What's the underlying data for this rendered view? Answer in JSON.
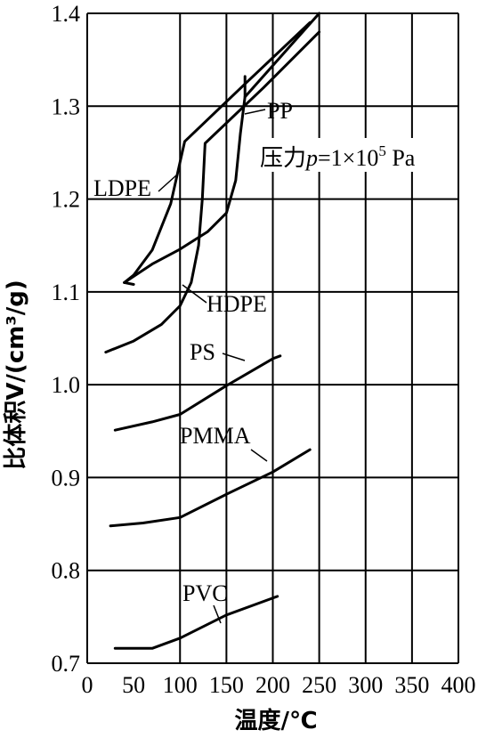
{
  "chart_data": {
    "type": "line",
    "xlabel": "温度/℃",
    "ylabel": "比体积V/(cm³/g)",
    "xlim": [
      0,
      400
    ],
    "ylim": [
      0.7,
      1.4
    ],
    "x_ticks": [
      "0",
      "50",
      "100",
      "150",
      "200",
      "250",
      "300",
      "350",
      "400"
    ],
    "y_ticks": [
      "0.7",
      "0.8",
      "0.9",
      "1.0",
      "1.1",
      "1.2",
      "1.3",
      "1.4"
    ],
    "grid": true,
    "annotation": {
      "prefix": "压力",
      "var": "p",
      "value": "=1×10",
      "exp": "5",
      "unit": " Pa"
    },
    "series": [
      {
        "name": "LDPE",
        "points": [
          [
            40,
            1.11
          ],
          [
            50,
            1.118
          ],
          [
            70,
            1.145
          ],
          [
            90,
            1.195
          ],
          [
            100,
            1.24
          ],
          [
            105,
            1.262
          ],
          [
            170,
            1.324
          ],
          [
            240,
            1.39
          ]
        ]
      },
      {
        "name": "HDPE",
        "points": [
          [
            20,
            1.035
          ],
          [
            50,
            1.047
          ],
          [
            80,
            1.065
          ],
          [
            100,
            1.085
          ],
          [
            112,
            1.11
          ],
          [
            120,
            1.15
          ],
          [
            124,
            1.2
          ],
          [
            127,
            1.26
          ],
          [
            190,
            1.32
          ],
          [
            250,
            1.38
          ]
        ]
      },
      {
        "name": "PP",
        "points": [
          [
            40,
            1.11
          ],
          [
            70,
            1.13
          ],
          [
            100,
            1.146
          ],
          [
            130,
            1.165
          ],
          [
            150,
            1.185
          ],
          [
            160,
            1.22
          ],
          [
            165,
            1.27
          ],
          [
            170,
            1.31
          ],
          [
            250,
            1.4
          ]
        ]
      },
      {
        "name": "PS",
        "points": [
          [
            30,
            0.951
          ],
          [
            70,
            0.96
          ],
          [
            100,
            0.968
          ],
          [
            150,
            0.999
          ],
          [
            200,
            1.028
          ],
          [
            208,
            1.031
          ]
        ]
      },
      {
        "name": "PMMA",
        "points": [
          [
            25,
            0.848
          ],
          [
            60,
            0.851
          ],
          [
            100,
            0.857
          ],
          [
            150,
            0.882
          ],
          [
            200,
            0.906
          ],
          [
            240,
            0.93
          ]
        ]
      },
      {
        "name": "PVC",
        "points": [
          [
            30,
            0.716
          ],
          [
            70,
            0.716
          ],
          [
            100,
            0.727
          ],
          [
            150,
            0.752
          ],
          [
            205,
            0.772
          ]
        ]
      }
    ]
  },
  "labels": {
    "LDPE": "LDPE",
    "HDPE": "HDPE",
    "PP": "PP",
    "PS": "PS",
    "PMMA": "PMMA",
    "PVC": "PVC"
  }
}
